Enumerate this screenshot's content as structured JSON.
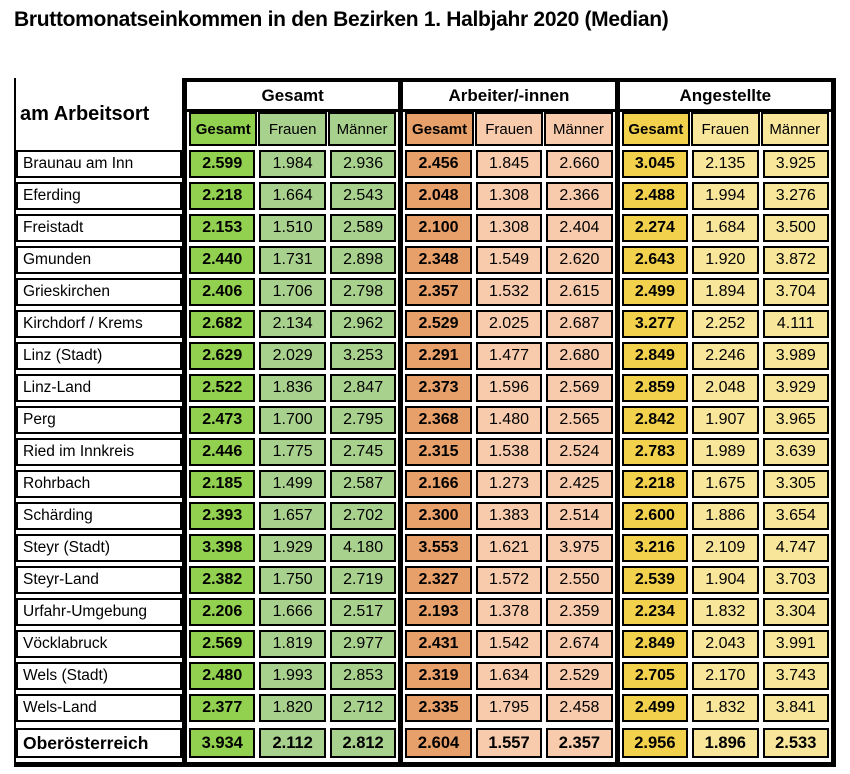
{
  "chart_data": {
    "type": "table",
    "title": "Bruttomonatseinkommen in den Bezirken 1. Halbjahr 2020 (Median)",
    "row_header": "am Arbeitsort",
    "column_groups": [
      "Gesamt",
      "Arbeiter/-innen",
      "Angestellte"
    ],
    "sub_columns": [
      "Gesamt",
      "Frauen",
      "Männer"
    ],
    "colors": {
      "green_strong": "#92D050",
      "green_light": "#A9D18E",
      "orange_strong": "#E8A06A",
      "orange_light": "#F8CBAD",
      "yellow_strong": "#F2D24D",
      "yellow_light": "#F8E79B"
    },
    "rows": [
      {
        "name": "Braunau am Inn",
        "values": [
          "2.599",
          "1.984",
          "2.936",
          "2.456",
          "1.845",
          "2.660",
          "3.045",
          "2.135",
          "3.925"
        ]
      },
      {
        "name": "Eferding",
        "values": [
          "2.218",
          "1.664",
          "2.543",
          "2.048",
          "1.308",
          "2.366",
          "2.488",
          "1.994",
          "3.276"
        ]
      },
      {
        "name": "Freistadt",
        "values": [
          "2.153",
          "1.510",
          "2.589",
          "2.100",
          "1.308",
          "2.404",
          "2.274",
          "1.684",
          "3.500"
        ]
      },
      {
        "name": "Gmunden",
        "values": [
          "2.440",
          "1.731",
          "2.898",
          "2.348",
          "1.549",
          "2.620",
          "2.643",
          "1.920",
          "3.872"
        ]
      },
      {
        "name": "Grieskirchen",
        "values": [
          "2.406",
          "1.706",
          "2.798",
          "2.357",
          "1.532",
          "2.615",
          "2.499",
          "1.894",
          "3.704"
        ]
      },
      {
        "name": "Kirchdorf / Krems",
        "values": [
          "2.682",
          "2.134",
          "2.962",
          "2.529",
          "2.025",
          "2.687",
          "3.277",
          "2.252",
          "4.111"
        ]
      },
      {
        "name": "Linz (Stadt)",
        "values": [
          "2.629",
          "2.029",
          "3.253",
          "2.291",
          "1.477",
          "2.680",
          "2.849",
          "2.246",
          "3.989"
        ]
      },
      {
        "name": "Linz-Land",
        "values": [
          "2.522",
          "1.836",
          "2.847",
          "2.373",
          "1.596",
          "2.569",
          "2.859",
          "2.048",
          "3.929"
        ]
      },
      {
        "name": "Perg",
        "values": [
          "2.473",
          "1.700",
          "2.795",
          "2.368",
          "1.480",
          "2.565",
          "2.842",
          "1.907",
          "3.965"
        ]
      },
      {
        "name": "Ried im Innkreis",
        "values": [
          "2.446",
          "1.775",
          "2.745",
          "2.315",
          "1.538",
          "2.524",
          "2.783",
          "1.989",
          "3.639"
        ]
      },
      {
        "name": "Rohrbach",
        "values": [
          "2.185",
          "1.499",
          "2.587",
          "2.166",
          "1.273",
          "2.425",
          "2.218",
          "1.675",
          "3.305"
        ]
      },
      {
        "name": "Schärding",
        "values": [
          "2.393",
          "1.657",
          "2.702",
          "2.300",
          "1.383",
          "2.514",
          "2.600",
          "1.886",
          "3.654"
        ]
      },
      {
        "name": "Steyr (Stadt)",
        "values": [
          "3.398",
          "1.929",
          "4.180",
          "3.553",
          "1.621",
          "3.975",
          "3.216",
          "2.109",
          "4.747"
        ]
      },
      {
        "name": "Steyr-Land",
        "values": [
          "2.382",
          "1.750",
          "2.719",
          "2.327",
          "1.572",
          "2.550",
          "2.539",
          "1.904",
          "3.703"
        ]
      },
      {
        "name": "Urfahr-Umgebung",
        "values": [
          "2.206",
          "1.666",
          "2.517",
          "2.193",
          "1.378",
          "2.359",
          "2.234",
          "1.832",
          "3.304"
        ]
      },
      {
        "name": "Vöcklabruck",
        "values": [
          "2.569",
          "1.819",
          "2.977",
          "2.431",
          "1.542",
          "2.674",
          "2.849",
          "2.043",
          "3.991"
        ]
      },
      {
        "name": "Wels (Stadt)",
        "values": [
          "2.480",
          "1.993",
          "2.853",
          "2.319",
          "1.634",
          "2.529",
          "2.705",
          "2.170",
          "3.743"
        ]
      },
      {
        "name": "Wels-Land",
        "values": [
          "2.377",
          "1.820",
          "2.712",
          "2.335",
          "1.795",
          "2.458",
          "2.499",
          "1.832",
          "3.841"
        ]
      },
      {
        "name": "Oberösterreich",
        "is_total": true,
        "values": [
          "3.934",
          "2.112",
          "2.812",
          "2.604",
          "1.557",
          "2.357",
          "2.956",
          "1.896",
          "2.533"
        ]
      }
    ]
  }
}
